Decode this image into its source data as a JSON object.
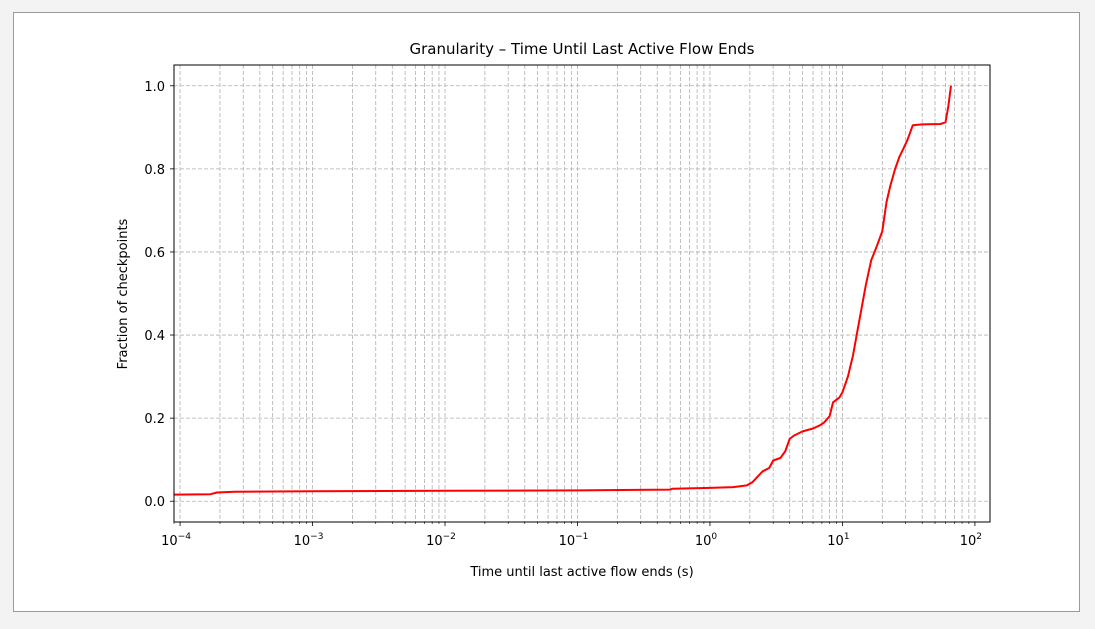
{
  "chart_data": {
    "type": "line",
    "title": "Granularity – Time Until Last Active Flow Ends",
    "xlabel": "Time until last active flow ends (s)",
    "ylabel": "Fraction of checkpoints",
    "xscale": "log",
    "xlim": [
      9e-05,
      130
    ],
    "ylim": [
      -0.05,
      1.05
    ],
    "grid": true,
    "x_ticks": [
      {
        "value": 0.0001,
        "base": "10",
        "exp": "−4"
      },
      {
        "value": 0.001,
        "base": "10",
        "exp": "−3"
      },
      {
        "value": 0.01,
        "base": "10",
        "exp": "−2"
      },
      {
        "value": 0.1,
        "base": "10",
        "exp": "−1"
      },
      {
        "value": 1,
        "base": "10",
        "exp": "0"
      },
      {
        "value": 10,
        "base": "10",
        "exp": "1"
      },
      {
        "value": 100,
        "base": "10",
        "exp": "2"
      }
    ],
    "y_ticks": [
      {
        "value": 0.0,
        "label": "0.0"
      },
      {
        "value": 0.2,
        "label": "0.2"
      },
      {
        "value": 0.4,
        "label": "0.4"
      },
      {
        "value": 0.6,
        "label": "0.6"
      },
      {
        "value": 0.8,
        "label": "0.8"
      },
      {
        "value": 1.0,
        "label": "1.0"
      }
    ],
    "series": [
      {
        "color": "#ff0000",
        "points": [
          [
            9e-05,
            0.016
          ],
          [
            0.00017,
            0.017
          ],
          [
            0.00019,
            0.021
          ],
          [
            0.00026,
            0.023
          ],
          [
            0.001,
            0.024
          ],
          [
            0.01,
            0.025
          ],
          [
            0.1,
            0.026
          ],
          [
            0.5,
            0.028
          ],
          [
            0.52,
            0.03
          ],
          [
            1.0,
            0.032
          ],
          [
            1.5,
            0.034
          ],
          [
            1.9,
            0.038
          ],
          [
            2.1,
            0.046
          ],
          [
            2.3,
            0.06
          ],
          [
            2.5,
            0.072
          ],
          [
            2.8,
            0.08
          ],
          [
            3.0,
            0.098
          ],
          [
            3.4,
            0.104
          ],
          [
            3.7,
            0.12
          ],
          [
            4.0,
            0.15
          ],
          [
            4.3,
            0.158
          ],
          [
            5.0,
            0.168
          ],
          [
            6.0,
            0.175
          ],
          [
            6.8,
            0.183
          ],
          [
            7.3,
            0.19
          ],
          [
            8.0,
            0.205
          ],
          [
            8.5,
            0.238
          ],
          [
            9.5,
            0.25
          ],
          [
            10.0,
            0.262
          ],
          [
            11.0,
            0.3
          ],
          [
            12.0,
            0.35
          ],
          [
            13.5,
            0.44
          ],
          [
            15.0,
            0.52
          ],
          [
            16.5,
            0.58
          ],
          [
            18.0,
            0.61
          ],
          [
            20.0,
            0.65
          ],
          [
            21.5,
            0.72
          ],
          [
            23.0,
            0.76
          ],
          [
            25.0,
            0.8
          ],
          [
            27.0,
            0.83
          ],
          [
            29.0,
            0.85
          ],
          [
            31.0,
            0.87
          ],
          [
            34.0,
            0.905
          ],
          [
            40.0,
            0.907
          ],
          [
            55.0,
            0.908
          ],
          [
            60.0,
            0.912
          ],
          [
            63.0,
            0.95
          ],
          [
            66.0,
            1.0
          ]
        ]
      }
    ]
  }
}
